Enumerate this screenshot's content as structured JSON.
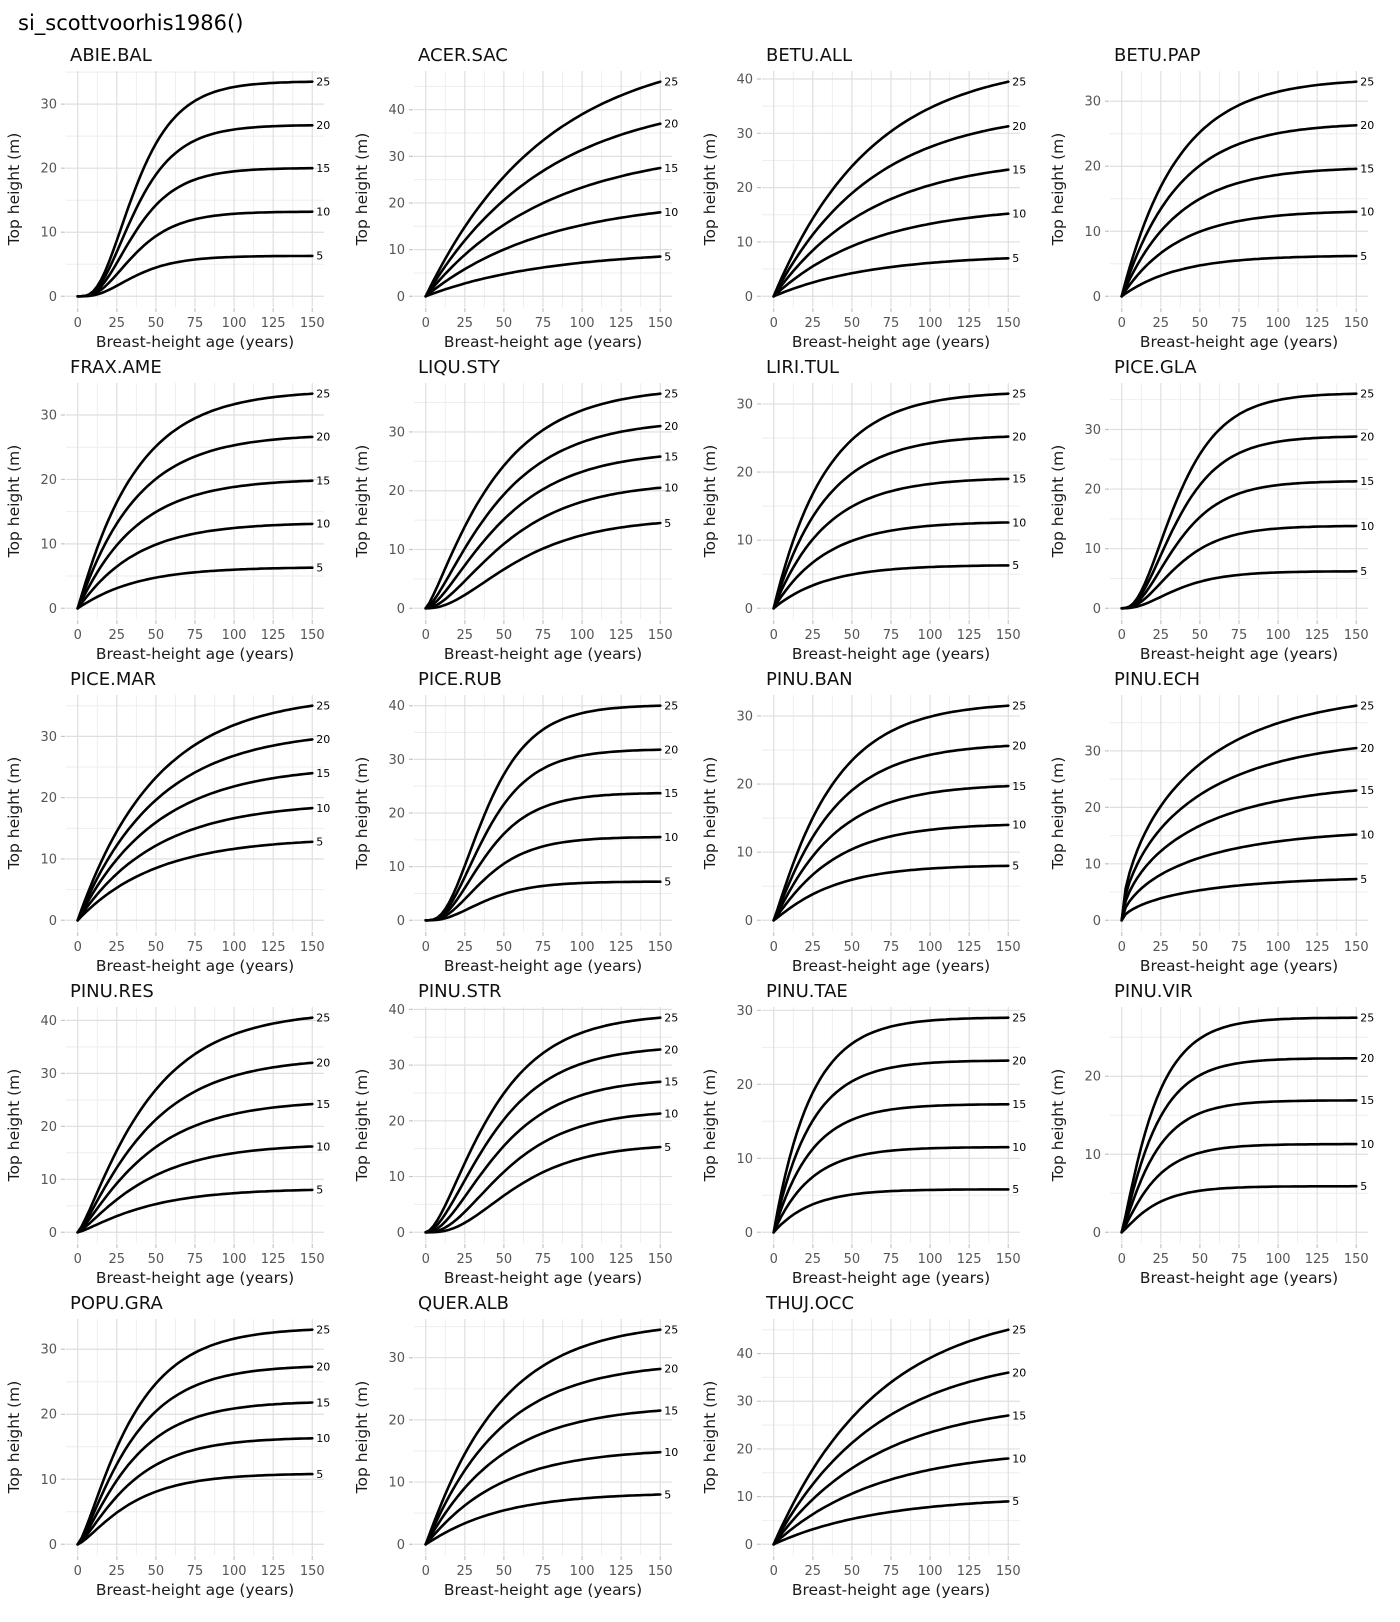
{
  "page_title": "si_scottvoorhis1986()",
  "axis": {
    "x_label": "Breast-height age (years)",
    "y_label": "Top height (m)",
    "x_ticks": [
      0,
      25,
      50,
      75,
      100,
      125,
      150
    ],
    "x_range": [
      0,
      150
    ],
    "x_minor_ticks": [
      12.5,
      37.5,
      62.5,
      87.5,
      112.5,
      137.5
    ],
    "y_minor_step": 5,
    "grid": "on",
    "legend": "curve labels at right end of each curve"
  },
  "site_index_labels": [
    25,
    20,
    15,
    10,
    5
  ],
  "style": {
    "curve_color": "#000000",
    "grid_major_color": "#dfdfdf",
    "grid_minor_color": "#eeeeee",
    "tick_mark_color": "#c4c4c4",
    "tick_label_color": "#555555",
    "axis_title_color": "#1a1a1a",
    "panel_title_color": "#111111",
    "background": "#ffffff"
  },
  "chart_data": [
    {
      "species": "ABIE.BAL",
      "type": "line",
      "x_range": [
        0,
        150
      ],
      "y_ticks": [
        0,
        10,
        20,
        30
      ],
      "shape": {
        "k": 0.05,
        "p": 4
      },
      "series": [
        {
          "si": 25,
          "h150": 33.5
        },
        {
          "si": 20,
          "h150": 26.7
        },
        {
          "si": 15,
          "h150": 20.0
        },
        {
          "si": 10,
          "h150": 13.2
        },
        {
          "si": 5,
          "h150": 6.3
        }
      ]
    },
    {
      "species": "ACER.SAC",
      "type": "line",
      "x_range": [
        0,
        150
      ],
      "y_ticks": [
        0,
        10,
        20,
        30,
        40
      ],
      "shape": {
        "k": 0.013,
        "p": 1
      },
      "series": [
        {
          "si": 25,
          "h150": 46.0
        },
        {
          "si": 20,
          "h150": 37.0
        },
        {
          "si": 15,
          "h150": 27.5
        },
        {
          "si": 10,
          "h150": 18.0
        },
        {
          "si": 5,
          "h150": 8.5
        }
      ]
    },
    {
      "species": "BETU.ALL",
      "type": "line",
      "x_range": [
        0,
        150
      ],
      "y_ticks": [
        0,
        10,
        20,
        30,
        40
      ],
      "shape": {
        "k": 0.016,
        "p": 1
      },
      "series": [
        {
          "si": 25,
          "h150": 39.5
        },
        {
          "si": 20,
          "h150": 31.3
        },
        {
          "si": 15,
          "h150": 23.3
        },
        {
          "si": 10,
          "h150": 15.2
        },
        {
          "si": 5,
          "h150": 7.0
        }
      ]
    },
    {
      "species": "BETU.PAP",
      "type": "line",
      "x_range": [
        0,
        150
      ],
      "y_ticks": [
        0,
        10,
        20,
        30
      ],
      "shape": {
        "k": 0.028,
        "p": 1
      },
      "series": [
        {
          "si": 25,
          "h150": 33.0
        },
        {
          "si": 20,
          "h150": 26.3
        },
        {
          "si": 15,
          "h150": 19.6
        },
        {
          "si": 10,
          "h150": 13.0
        },
        {
          "si": 5,
          "h150": 6.2
        }
      ]
    },
    {
      "species": "FRAX.AME",
      "type": "line",
      "x_range": [
        0,
        150
      ],
      "y_ticks": [
        0,
        10,
        20,
        30
      ],
      "shape": {
        "k": 0.028,
        "p": 1.05
      },
      "series": [
        {
          "si": 25,
          "h150": 33.3
        },
        {
          "si": 20,
          "h150": 26.6
        },
        {
          "si": 15,
          "h150": 19.8
        },
        {
          "si": 10,
          "h150": 13.1
        },
        {
          "si": 5,
          "h150": 6.3
        }
      ]
    },
    {
      "species": "LIQU.STY",
      "type": "line",
      "x_range": [
        0,
        150
      ],
      "y_ticks": [
        0,
        10,
        20,
        30
      ],
      "shape": {
        "k": 0.025,
        "p": 1.3
      },
      "series": [
        {
          "si": 25,
          "h150": 36.5,
          "p": 1.3
        },
        {
          "si": 20,
          "h150": 31.0,
          "p": 1.5
        },
        {
          "si": 15,
          "h150": 25.8,
          "p": 1.7
        },
        {
          "si": 10,
          "h150": 20.5,
          "p": 2.0
        },
        {
          "si": 5,
          "h150": 14.5,
          "p": 2.5
        }
      ]
    },
    {
      "species": "LIRI.TUL",
      "type": "line",
      "x_range": [
        0,
        150
      ],
      "y_ticks": [
        0,
        10,
        20,
        30
      ],
      "shape": {
        "k": 0.03,
        "p": 1
      },
      "series": [
        {
          "si": 25,
          "h150": 31.5
        },
        {
          "si": 20,
          "h150": 25.2
        },
        {
          "si": 15,
          "h150": 19.0
        },
        {
          "si": 10,
          "h150": 12.6
        },
        {
          "si": 5,
          "h150": 6.3
        }
      ]
    },
    {
      "species": "PICE.GLA",
      "type": "line",
      "x_range": [
        0,
        150
      ],
      "y_ticks": [
        0,
        10,
        20,
        30
      ],
      "shape": {
        "k": 0.045,
        "p": 3
      },
      "series": [
        {
          "si": 25,
          "h150": 36.0
        },
        {
          "si": 20,
          "h150": 28.8
        },
        {
          "si": 15,
          "h150": 21.3
        },
        {
          "si": 10,
          "h150": 13.8
        },
        {
          "si": 5,
          "h150": 6.2
        }
      ]
    },
    {
      "species": "PICE.MAR",
      "type": "line",
      "x_range": [
        0,
        150
      ],
      "y_ticks": [
        0,
        10,
        20,
        30
      ],
      "shape": {
        "k": 0.02,
        "p": 1
      },
      "series": [
        {
          "si": 25,
          "h150": 35.0
        },
        {
          "si": 20,
          "h150": 29.5
        },
        {
          "si": 15,
          "h150": 24.0
        },
        {
          "si": 10,
          "h150": 18.3
        },
        {
          "si": 5,
          "h150": 12.8
        }
      ]
    },
    {
      "species": "PICE.RUB",
      "type": "line",
      "x_range": [
        0,
        150
      ],
      "y_ticks": [
        0,
        10,
        20,
        30,
        40
      ],
      "shape": {
        "k": 0.045,
        "p": 3.5
      },
      "series": [
        {
          "si": 25,
          "h150": 40.0
        },
        {
          "si": 20,
          "h150": 31.8
        },
        {
          "si": 15,
          "h150": 23.7
        },
        {
          "si": 10,
          "h150": 15.5
        },
        {
          "si": 5,
          "h150": 7.2
        }
      ]
    },
    {
      "species": "PINU.BAN",
      "type": "line",
      "x_range": [
        0,
        150
      ],
      "y_ticks": [
        0,
        10,
        20,
        30
      ],
      "shape": {
        "k": 0.028,
        "p": 1.1
      },
      "series": [
        {
          "si": 25,
          "h150": 31.5
        },
        {
          "si": 20,
          "h150": 25.6
        },
        {
          "si": 15,
          "h150": 19.7
        },
        {
          "si": 10,
          "h150": 14.0
        },
        {
          "si": 5,
          "h150": 8.0
        }
      ]
    },
    {
      "species": "PINU.ECH",
      "type": "line",
      "x_range": [
        0,
        150
      ],
      "y_ticks": [
        0,
        10,
        20,
        30
      ],
      "shape": {
        "k": 0.015,
        "p": 0.6
      },
      "series": [
        {
          "si": 25,
          "h150": 38.0
        },
        {
          "si": 20,
          "h150": 30.5
        },
        {
          "si": 15,
          "h150": 23.0
        },
        {
          "si": 10,
          "h150": 15.2
        },
        {
          "si": 5,
          "h150": 7.3
        }
      ]
    },
    {
      "species": "PINU.RES",
      "type": "line",
      "x_range": [
        0,
        150
      ],
      "y_ticks": [
        0,
        10,
        20,
        30,
        40
      ],
      "shape": {
        "k": 0.025,
        "p": 1.3
      },
      "series": [
        {
          "si": 25,
          "h150": 40.5
        },
        {
          "si": 20,
          "h150": 32.0
        },
        {
          "si": 15,
          "h150": 24.2
        },
        {
          "si": 10,
          "h150": 16.2
        },
        {
          "si": 5,
          "h150": 8.0
        }
      ]
    },
    {
      "species": "PINU.STR",
      "type": "line",
      "x_range": [
        0,
        150
      ],
      "y_ticks": [
        0,
        10,
        20,
        30,
        40
      ],
      "shape": {
        "k": 0.03,
        "p": 1.8
      },
      "series": [
        {
          "si": 25,
          "h150": 38.5,
          "p": 1.8
        },
        {
          "si": 20,
          "h150": 32.8,
          "p": 2.0
        },
        {
          "si": 15,
          "h150": 27.0,
          "p": 2.3
        },
        {
          "si": 10,
          "h150": 21.3,
          "p": 2.8
        },
        {
          "si": 5,
          "h150": 15.3,
          "p": 3.5
        }
      ]
    },
    {
      "species": "PINU.TAE",
      "type": "line",
      "x_range": [
        0,
        150
      ],
      "y_ticks": [
        0,
        10,
        20,
        30
      ],
      "shape": {
        "k": 0.042,
        "p": 1
      },
      "series": [
        {
          "si": 25,
          "h150": 29.0
        },
        {
          "si": 20,
          "h150": 23.2
        },
        {
          "si": 15,
          "h150": 17.3
        },
        {
          "si": 10,
          "h150": 11.5
        },
        {
          "si": 5,
          "h150": 5.8
        }
      ]
    },
    {
      "species": "PINU.VIR",
      "type": "line",
      "x_range": [
        0,
        150
      ],
      "y_ticks": [
        0,
        10,
        20
      ],
      "shape": {
        "k": 0.05,
        "p": 1.2
      },
      "series": [
        {
          "si": 25,
          "h150": 27.5
        },
        {
          "si": 20,
          "h150": 22.3
        },
        {
          "si": 15,
          "h150": 16.9
        },
        {
          "si": 10,
          "h150": 11.3
        },
        {
          "si": 5,
          "h150": 5.9
        }
      ]
    },
    {
      "species": "POPU.GRA",
      "type": "line",
      "x_range": [
        0,
        150
      ],
      "y_ticks": [
        0,
        10,
        20,
        30
      ],
      "shape": {
        "k": 0.033,
        "p": 1.4
      },
      "series": [
        {
          "si": 25,
          "h150": 33.0
        },
        {
          "si": 20,
          "h150": 27.3
        },
        {
          "si": 15,
          "h150": 21.8
        },
        {
          "si": 10,
          "h150": 16.3
        },
        {
          "si": 5,
          "h150": 10.8
        }
      ]
    },
    {
      "species": "QUER.ALB",
      "type": "line",
      "x_range": [
        0,
        150
      ],
      "y_ticks": [
        0,
        10,
        20,
        30
      ],
      "shape": {
        "k": 0.022,
        "p": 1.05
      },
      "series": [
        {
          "si": 25,
          "h150": 34.5
        },
        {
          "si": 20,
          "h150": 28.2
        },
        {
          "si": 15,
          "h150": 21.5
        },
        {
          "si": 10,
          "h150": 14.8
        },
        {
          "si": 5,
          "h150": 8.0
        }
      ]
    },
    {
      "species": "THUJ.OCC",
      "type": "line",
      "x_range": [
        0,
        150
      ],
      "y_ticks": [
        0,
        10,
        20,
        30,
        40
      ],
      "shape": {
        "k": 0.015,
        "p": 1
      },
      "series": [
        {
          "si": 25,
          "h150": 45.0
        },
        {
          "si": 20,
          "h150": 36.0
        },
        {
          "si": 15,
          "h150": 27.0
        },
        {
          "si": 10,
          "h150": 18.0
        },
        {
          "si": 5,
          "h150": 9.0
        }
      ]
    }
  ]
}
